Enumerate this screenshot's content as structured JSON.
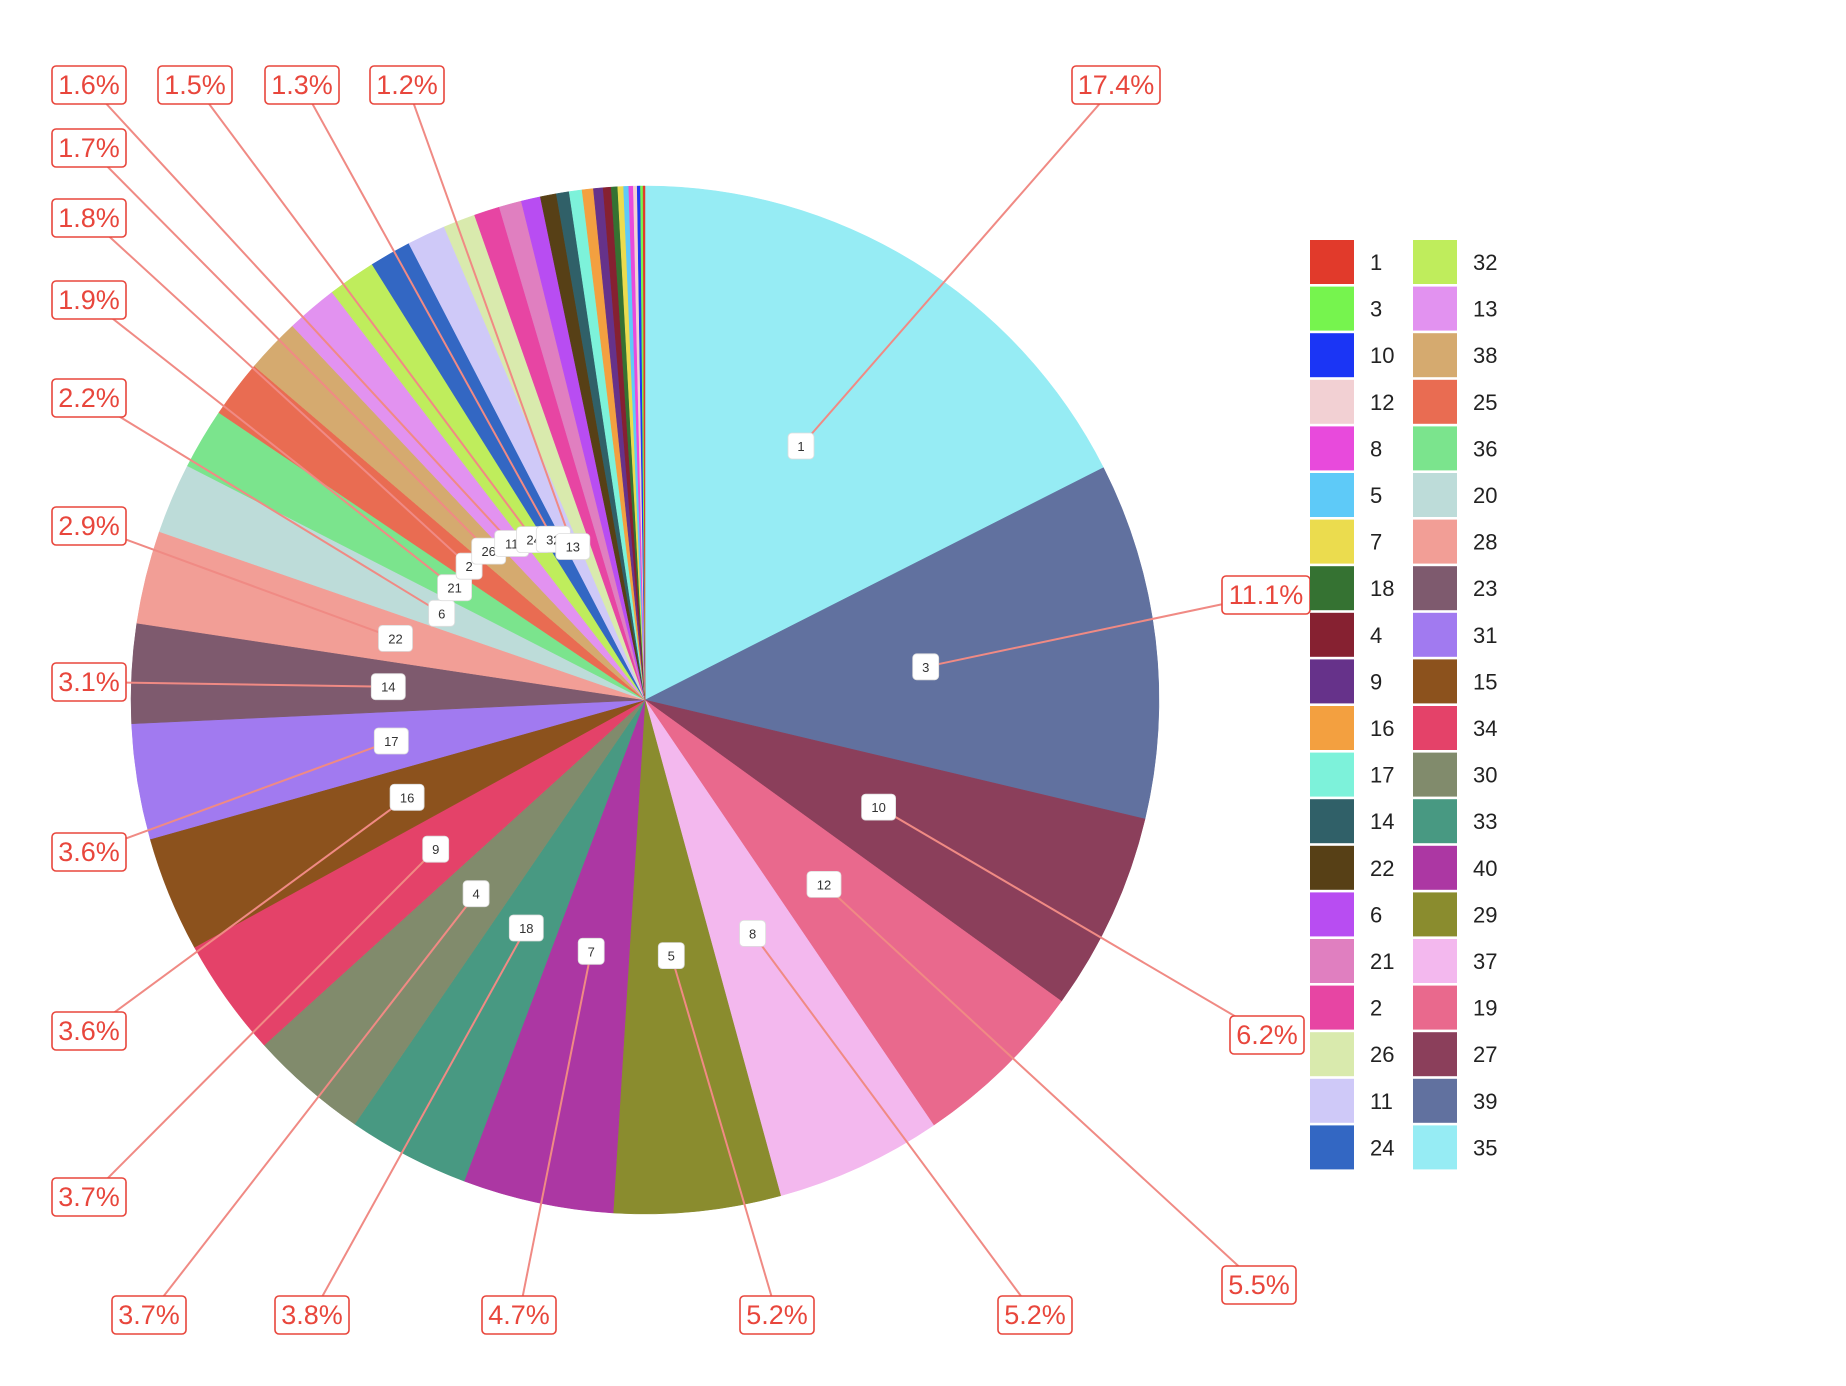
{
  "chart_data": {
    "type": "pie",
    "title": "",
    "slices": [
      {
        "label": "1",
        "percent": 17.4,
        "color": "#96ecf4"
      },
      {
        "label": "3",
        "percent": 11.1,
        "color": "#61719f"
      },
      {
        "label": "10",
        "percent": 6.2,
        "color": "#8b3f5b"
      },
      {
        "label": "12",
        "percent": 5.5,
        "color": "#e9698d"
      },
      {
        "label": "8",
        "percent": 5.2,
        "color": "#f3b8ee"
      },
      {
        "label": "5",
        "percent": 5.2,
        "color": "#8a8c2e"
      },
      {
        "label": "7",
        "percent": 4.7,
        "color": "#ac37a3"
      },
      {
        "label": "18",
        "percent": 3.8,
        "color": "#489982"
      },
      {
        "label": "4",
        "percent": 3.7,
        "color": "#818b6c"
      },
      {
        "label": "9",
        "percent": 3.7,
        "color": "#e44269"
      },
      {
        "label": "16",
        "percent": 3.6,
        "color": "#8c521d"
      },
      {
        "label": "17",
        "percent": 3.6,
        "color": "#a17af0"
      },
      {
        "label": "14",
        "percent": 3.1,
        "color": "#7e5a6e"
      },
      {
        "label": "22",
        "percent": 2.9,
        "color": "#f29e96"
      },
      {
        "label": "6",
        "percent": 2.2,
        "color": "#bddcd9"
      },
      {
        "label": "21",
        "percent": 1.9,
        "color": "#7be48d"
      },
      {
        "label": "2",
        "percent": 1.8,
        "color": "#e96c52"
      },
      {
        "label": "26",
        "percent": 1.7,
        "color": "#d5aa6f"
      },
      {
        "label": "11",
        "percent": 1.6,
        "color": "#e292f0"
      },
      {
        "label": "24",
        "percent": 1.5,
        "color": "#bfed5c"
      },
      {
        "label": "32",
        "percent": 1.3,
        "color": "#3367c3"
      },
      {
        "label": "13",
        "percent": 1.2,
        "color": "#cfc9f8"
      },
      {
        "label": "",
        "percent": 1.0,
        "color": "#d9eaad"
      },
      {
        "label": "",
        "percent": 0.8,
        "color": "#e745a3"
      },
      {
        "label": "",
        "percent": 0.7,
        "color": "#e07fc0"
      },
      {
        "label": "",
        "percent": 0.6,
        "color": "#b84df2"
      },
      {
        "label": "",
        "percent": 0.5,
        "color": "#574016"
      },
      {
        "label": "",
        "percent": 0.4,
        "color": "#306068"
      },
      {
        "label": "",
        "percent": 0.4,
        "color": "#7df2da"
      },
      {
        "label": "",
        "percent": 0.35,
        "color": "#f3a040"
      },
      {
        "label": "",
        "percent": 0.3,
        "color": "#66328a"
      },
      {
        "label": "",
        "percent": 0.25,
        "color": "#862131"
      },
      {
        "label": "",
        "percent": 0.2,
        "color": "#357232"
      },
      {
        "label": "",
        "percent": 0.18,
        "color": "#ebdc4e"
      },
      {
        "label": "",
        "percent": 0.16,
        "color": "#5ecaf8"
      },
      {
        "label": "",
        "percent": 0.14,
        "color": "#e84adc"
      },
      {
        "label": "",
        "percent": 0.12,
        "color": "#f2d0d3"
      },
      {
        "label": "",
        "percent": 0.1,
        "color": "#1b35f5"
      },
      {
        "label": "",
        "percent": 0.08,
        "color": "#76f44e"
      },
      {
        "label": "",
        "percent": 0.06,
        "color": "#e13a2b"
      }
    ],
    "percent_labels": [
      "17.4%",
      "11.1%",
      "6.2%",
      "5.5%",
      "5.2%",
      "5.2%",
      "4.7%",
      "3.8%",
      "3.7%",
      "3.7%",
      "3.6%",
      "3.6%",
      "3.1%",
      "2.9%",
      "2.2%",
      "1.9%",
      "1.8%",
      "1.7%",
      "1.6%",
      "1.5%",
      "1.3%",
      "1.2%"
    ],
    "legend": {
      "placement": "right",
      "columns": 2,
      "entries": [
        {
          "label": "1",
          "color": "#e13a2b"
        },
        {
          "label": "3",
          "color": "#76f44e"
        },
        {
          "label": "10",
          "color": "#1b35f5"
        },
        {
          "label": "12",
          "color": "#f2d0d3"
        },
        {
          "label": "8",
          "color": "#e84adc"
        },
        {
          "label": "5",
          "color": "#5ecaf8"
        },
        {
          "label": "7",
          "color": "#ebdc4e"
        },
        {
          "label": "18",
          "color": "#357232"
        },
        {
          "label": "4",
          "color": "#862131"
        },
        {
          "label": "9",
          "color": "#66328a"
        },
        {
          "label": "16",
          "color": "#f3a040"
        },
        {
          "label": "17",
          "color": "#7df2da"
        },
        {
          "label": "14",
          "color": "#306068"
        },
        {
          "label": "22",
          "color": "#574016"
        },
        {
          "label": "6",
          "color": "#b84df2"
        },
        {
          "label": "21",
          "color": "#e07fc0"
        },
        {
          "label": "2",
          "color": "#e745a3"
        },
        {
          "label": "26",
          "color": "#d9eaad"
        },
        {
          "label": "11",
          "color": "#cfc9f8"
        },
        {
          "label": "24",
          "color": "#3367c3"
        },
        {
          "label": "32",
          "color": "#bfed5c"
        },
        {
          "label": "13",
          "color": "#e292f0"
        },
        {
          "label": "38",
          "color": "#d5aa6f"
        },
        {
          "label": "25",
          "color": "#e96c52"
        },
        {
          "label": "36",
          "color": "#7be48d"
        },
        {
          "label": "20",
          "color": "#bddcd9"
        },
        {
          "label": "28",
          "color": "#f29e96"
        },
        {
          "label": "23",
          "color": "#7e5a6e"
        },
        {
          "label": "31",
          "color": "#a17af0"
        },
        {
          "label": "15",
          "color": "#8c521d"
        },
        {
          "label": "34",
          "color": "#e44269"
        },
        {
          "label": "30",
          "color": "#818b6c"
        },
        {
          "label": "33",
          "color": "#489982"
        },
        {
          "label": "40",
          "color": "#ac37a3"
        },
        {
          "label": "29",
          "color": "#8a8c2e"
        },
        {
          "label": "37",
          "color": "#f3b8ee"
        },
        {
          "label": "19",
          "color": "#e9698d"
        },
        {
          "label": "27",
          "color": "#8b3f5b"
        },
        {
          "label": "39",
          "color": "#61719f"
        },
        {
          "label": "35",
          "color": "#96ecf4"
        }
      ]
    }
  }
}
